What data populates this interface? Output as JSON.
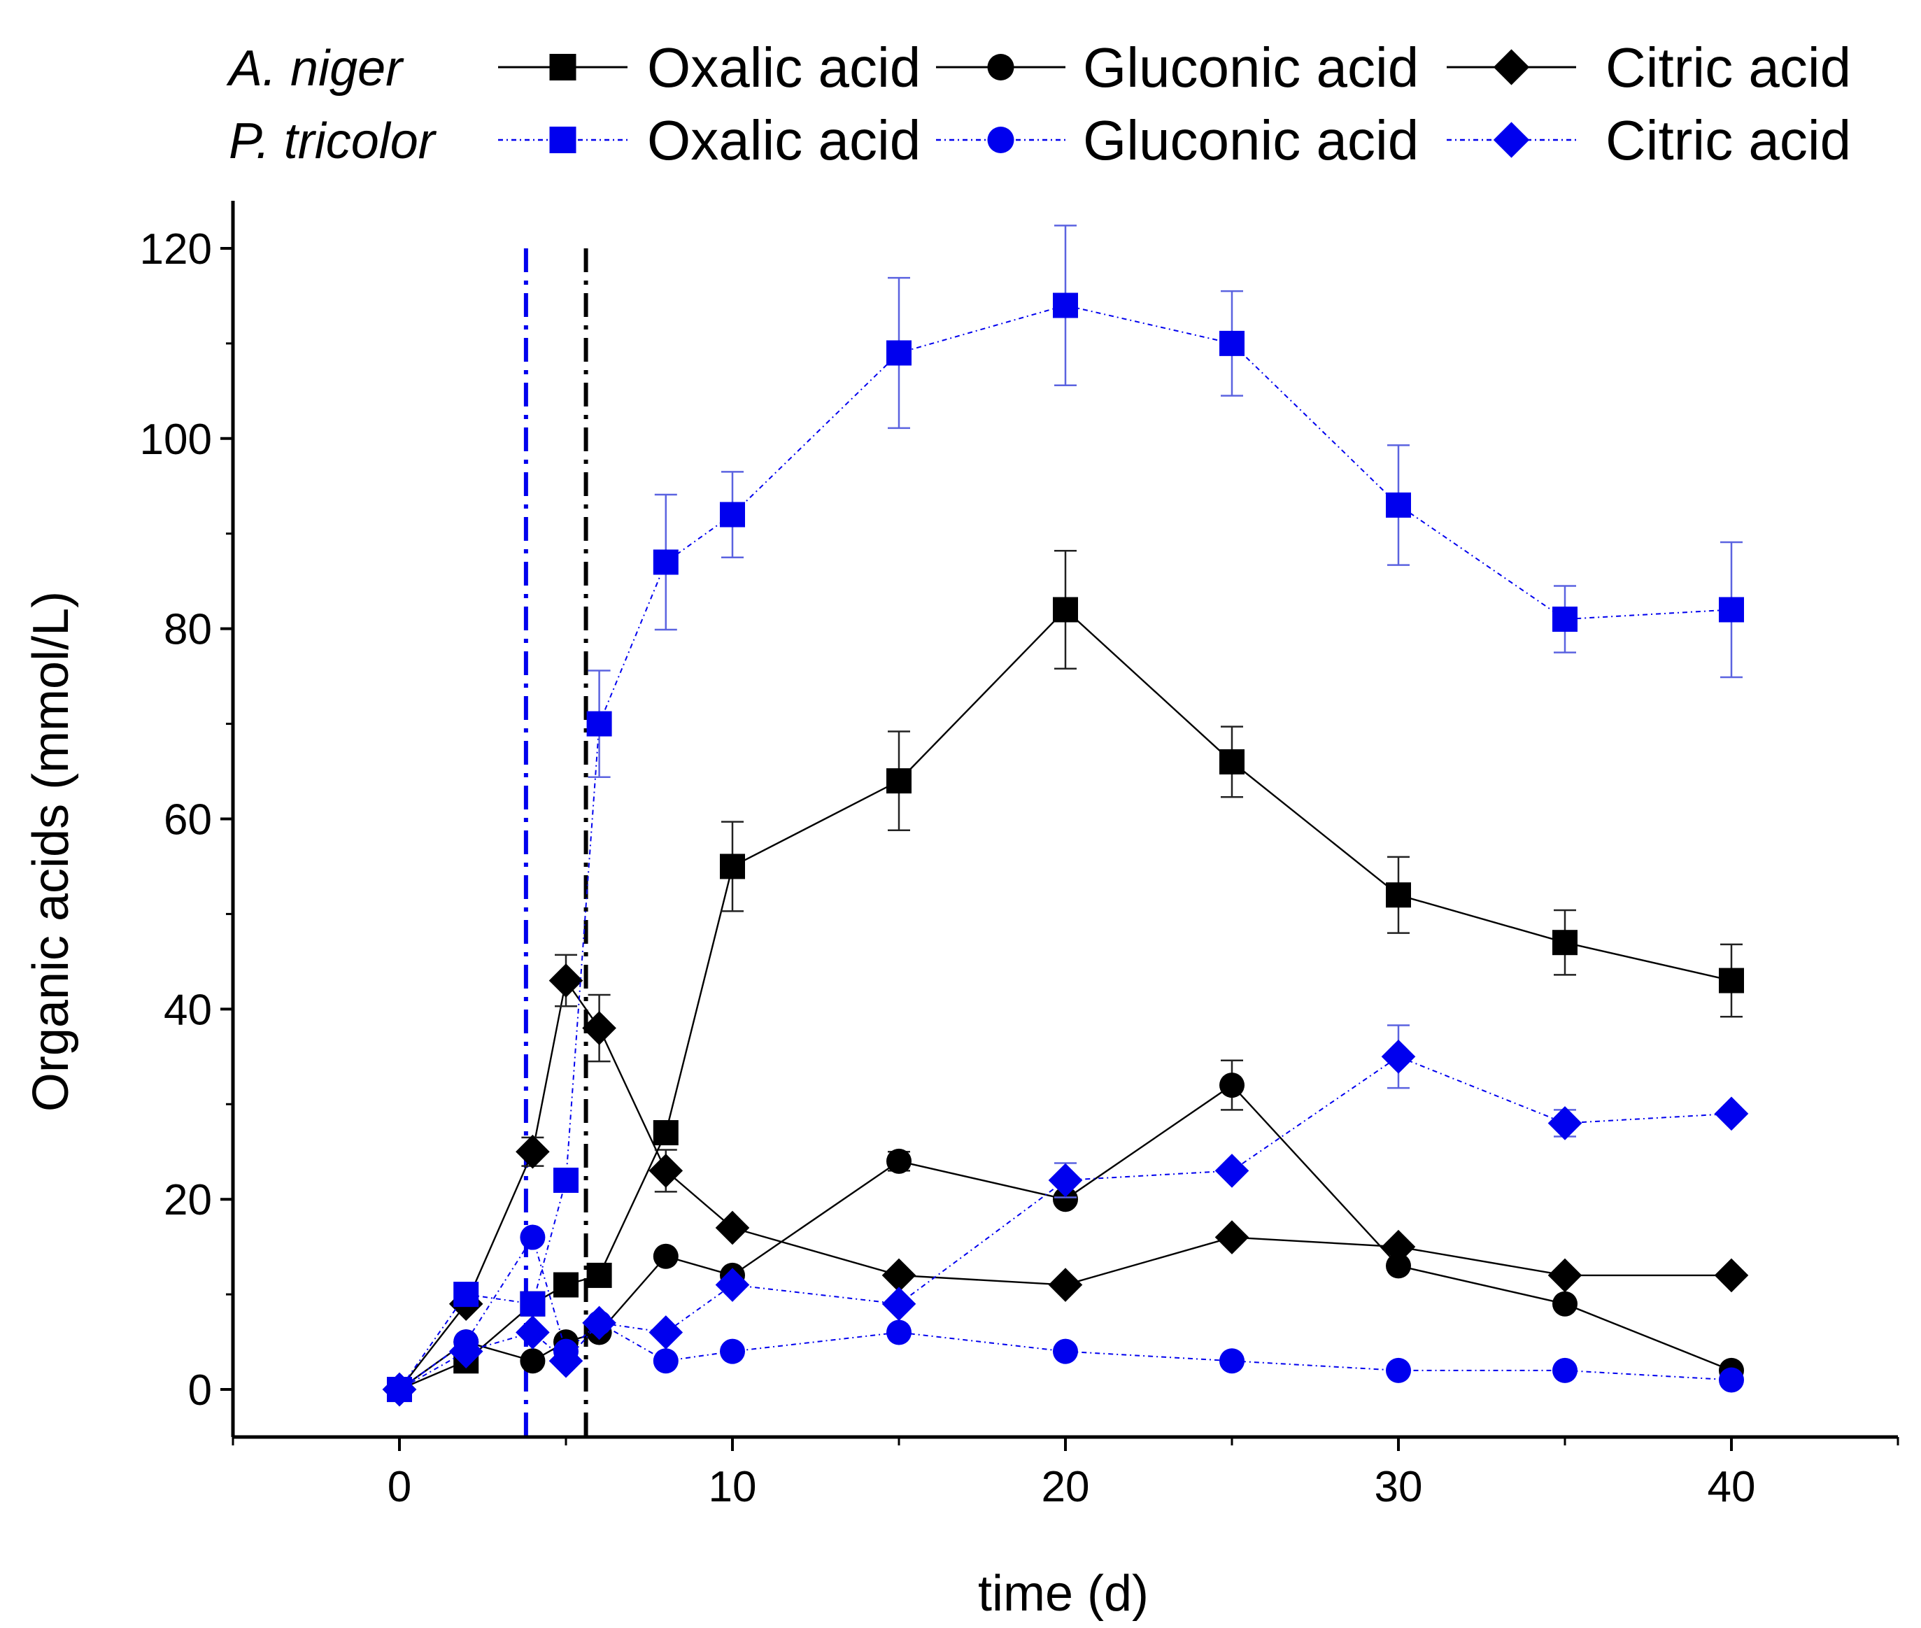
{
  "chart_data": {
    "type": "line",
    "title": "",
    "xlabel": "time (d)",
    "ylabel": "Organic acids (mmol/L)",
    "xlim": [
      -5,
      45
    ],
    "ylim": [
      -5,
      125
    ],
    "xticks": [
      0,
      10,
      20,
      30,
      40
    ],
    "yticks": [
      0,
      20,
      40,
      60,
      80,
      100,
      120
    ],
    "colors": {
      "aniger": "#000000",
      "ptricolor": "#0000ee"
    },
    "legend": {
      "position": "top",
      "rows": [
        {
          "species": "A. niger",
          "group": "aniger",
          "items": [
            "Oxalic acid",
            "Gluconic acid",
            "Citric acid"
          ]
        },
        {
          "species": "P. tricolor",
          "group": "ptricolor",
          "items": [
            "Oxalic acid",
            "Gluconic acid",
            "Citric acid"
          ]
        }
      ]
    },
    "vertical_lines": [
      {
        "x": 3.8,
        "group": "ptricolor",
        "style": "dash-dot"
      },
      {
        "x": 5.6,
        "group": "aniger",
        "style": "dash-dot"
      }
    ],
    "series": [
      {
        "name": "Oxalic acid",
        "group": "aniger",
        "marker": "square",
        "x": [
          0,
          2,
          4,
          5,
          6,
          8,
          10,
          15,
          20,
          25,
          30,
          35,
          40
        ],
        "y": [
          0,
          3,
          9,
          11,
          12,
          27,
          55,
          64,
          82,
          66,
          52,
          47,
          43
        ],
        "err": [
          0,
          0,
          0,
          0,
          0,
          0,
          4.7,
          5.2,
          6.2,
          3.7,
          4,
          3.4,
          3.8
        ]
      },
      {
        "name": "Gluconic acid",
        "group": "aniger",
        "marker": "circle",
        "x": [
          0,
          2,
          4,
          5,
          6,
          8,
          10,
          15,
          20,
          25,
          30,
          35,
          40
        ],
        "y": [
          0,
          5,
          3,
          5,
          6,
          14,
          12,
          24,
          20,
          32,
          13,
          9,
          2
        ],
        "err": [
          0,
          0,
          0,
          0,
          0,
          0,
          0,
          1,
          0,
          2.6,
          0,
          0,
          0
        ]
      },
      {
        "name": "Citric acid",
        "group": "aniger",
        "marker": "diamond",
        "x": [
          0,
          2,
          4,
          5,
          6,
          8,
          10,
          15,
          20,
          25,
          30,
          35,
          40
        ],
        "y": [
          0,
          9,
          25,
          43,
          38,
          23,
          17,
          12,
          11,
          16,
          15,
          12,
          12
        ],
        "err": [
          0,
          0,
          1.5,
          2.7,
          3.5,
          2.2,
          0,
          0,
          0,
          0,
          0,
          0,
          0
        ]
      },
      {
        "name": "Oxalic acid",
        "group": "ptricolor",
        "marker": "square",
        "x": [
          0,
          2,
          4,
          5,
          6,
          8,
          10,
          15,
          20,
          25,
          30,
          35,
          40
        ],
        "y": [
          0,
          10,
          9,
          22,
          70,
          87,
          92,
          109,
          114,
          110,
          93,
          81,
          82
        ],
        "err": [
          0,
          0,
          0,
          0,
          5.6,
          7.1,
          4.5,
          7.9,
          8.4,
          5.5,
          6.3,
          3.5,
          7.1
        ]
      },
      {
        "name": "Gluconic acid",
        "group": "ptricolor",
        "marker": "circle",
        "x": [
          0,
          2,
          4,
          5,
          6,
          8,
          10,
          15,
          20,
          25,
          30,
          35,
          40
        ],
        "y": [
          0,
          5,
          16,
          4,
          7,
          3,
          4,
          6,
          4,
          3,
          2,
          2,
          1
        ],
        "err": [
          0,
          0,
          0,
          0,
          0,
          0,
          0,
          0,
          0,
          0,
          0,
          0,
          0
        ]
      },
      {
        "name": "Citric acid",
        "group": "ptricolor",
        "marker": "diamond",
        "x": [
          0,
          2,
          4,
          5,
          6,
          8,
          10,
          15,
          20,
          25,
          30,
          35,
          40
        ],
        "y": [
          0,
          4,
          6,
          3,
          7,
          6,
          11,
          9,
          22,
          23,
          35,
          28,
          29
        ],
        "err": [
          0,
          0,
          0,
          0,
          0,
          0,
          0,
          0,
          1.8,
          0,
          3.3,
          1.4,
          0
        ]
      }
    ]
  }
}
